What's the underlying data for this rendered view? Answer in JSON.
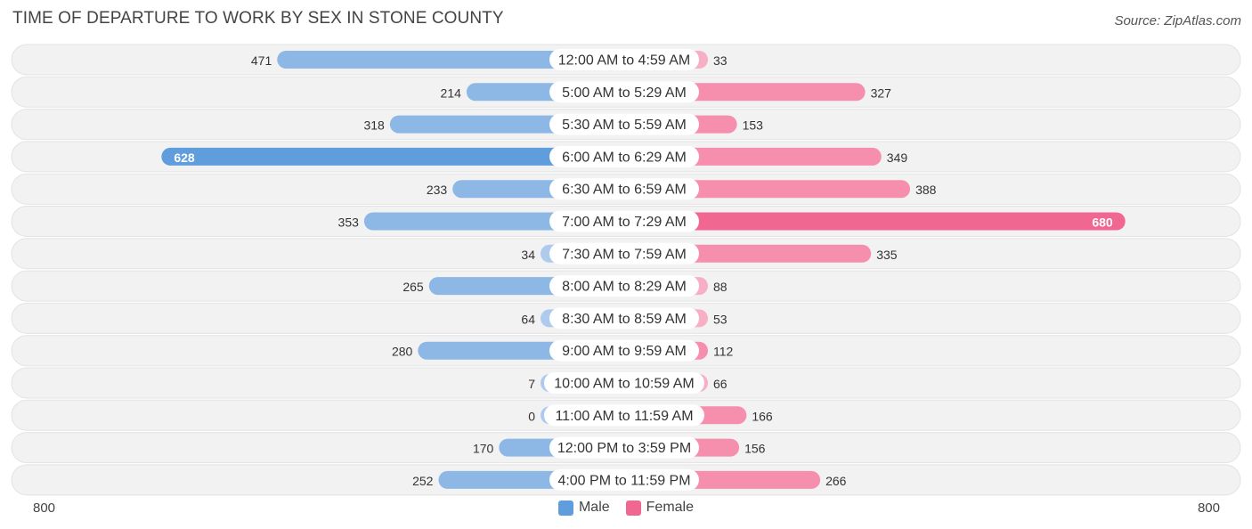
{
  "title": "TIME OF DEPARTURE TO WORK BY SEX IN STONE COUNTY",
  "source": "Source: ZipAtlas.com",
  "colors": {
    "male": "#8db8e6",
    "male_strong": "#5f9ddc",
    "male_light": "#aecbee",
    "female": "#f68eae",
    "female_strong": "#f06792",
    "female_light": "#f7afc6",
    "row_bg": "#f2f2f2"
  },
  "chart_data": {
    "type": "bar",
    "orientation": "horizontal-diverging",
    "title": "TIME OF DEPARTURE TO WORK BY SEX IN STONE COUNTY",
    "categories": [
      "12:00 AM to 4:59 AM",
      "5:00 AM to 5:29 AM",
      "5:30 AM to 5:59 AM",
      "6:00 AM to 6:29 AM",
      "6:30 AM to 6:59 AM",
      "7:00 AM to 7:29 AM",
      "7:30 AM to 7:59 AM",
      "8:00 AM to 8:29 AM",
      "8:30 AM to 8:59 AM",
      "9:00 AM to 9:59 AM",
      "10:00 AM to 10:59 AM",
      "11:00 AM to 11:59 AM",
      "12:00 PM to 3:59 PM",
      "4:00 PM to 11:59 PM"
    ],
    "series": [
      {
        "name": "Male",
        "values": [
          471,
          214,
          318,
          628,
          233,
          353,
          34,
          265,
          64,
          280,
          7,
          0,
          170,
          252
        ]
      },
      {
        "name": "Female",
        "values": [
          33,
          327,
          153,
          349,
          388,
          680,
          335,
          88,
          53,
          112,
          66,
          166,
          156,
          266
        ]
      }
    ],
    "axis_max": 800,
    "axis_labels": {
      "left": "800",
      "right": "800"
    },
    "legend_position": "bottom-center"
  }
}
